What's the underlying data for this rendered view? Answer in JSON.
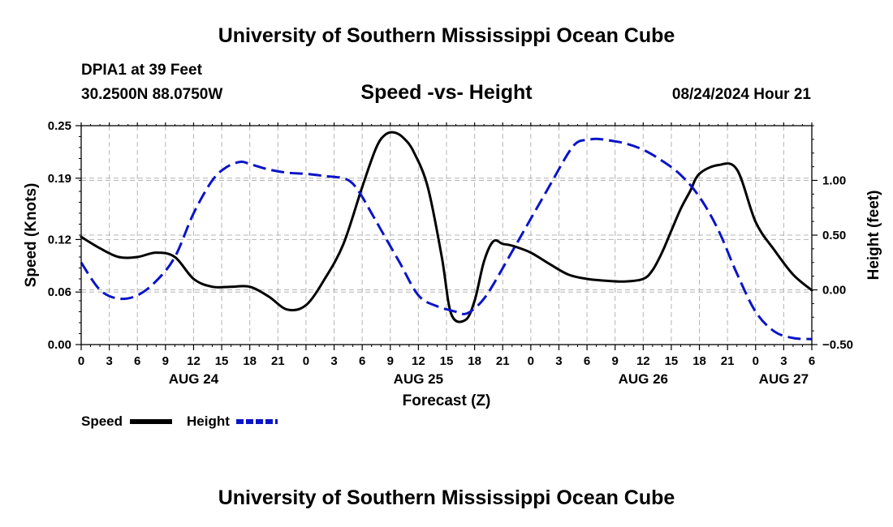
{
  "header": {
    "title": "University of Southern Mississippi Ocean Cube",
    "station": "DPIA1 at 39 Feet",
    "coords": "30.2500N  88.0750W",
    "subtitle": "Speed -vs- Height",
    "datetime": "08/24/2024 Hour 21"
  },
  "footer": {
    "title": "University of Southern Mississippi Ocean Cube"
  },
  "legend": {
    "speed_label": "Speed",
    "height_label": "Height"
  },
  "colors": {
    "speed": "#000000",
    "height": "#0a14c8",
    "grid": "#b4b4b4"
  },
  "chart_data": {
    "type": "line",
    "title": "Speed -vs- Height",
    "xlabel": "Forecast (Z)",
    "ylabel": "Speed (Knots)",
    "y2label": "Height (feet)",
    "x_unit": "hours since 00Z Aug 24",
    "xlim": [
      0,
      78
    ],
    "ylim": [
      0,
      0.25
    ],
    "y2lim": [
      -0.5,
      1.5
    ],
    "x_ticks": [
      0,
      3,
      6,
      9,
      12,
      15,
      18,
      21,
      24,
      27,
      30,
      33,
      36,
      39,
      42,
      45,
      48,
      51,
      54,
      57,
      60,
      63,
      66,
      69,
      72,
      75,
      78
    ],
    "x_tick_labels": [
      "0",
      "3",
      "6",
      "9",
      "12",
      "15",
      "18",
      "21",
      "0",
      "3",
      "6",
      "9",
      "12",
      "15",
      "18",
      "21",
      "0",
      "3",
      "6",
      "9",
      "12",
      "15",
      "18",
      "21",
      "0",
      "3",
      "6"
    ],
    "date_labels": [
      {
        "x": 12,
        "label": "AUG 24"
      },
      {
        "x": 36,
        "label": "AUG 25"
      },
      {
        "x": 60,
        "label": "AUG 26"
      },
      {
        "x": 75,
        "label": "AUG 27"
      }
    ],
    "y_ticks": [
      0.0,
      0.06,
      0.12,
      0.19,
      0.25
    ],
    "y_tick_labels": [
      "0.00",
      "0.06",
      "0.12",
      "0.19",
      "0.25"
    ],
    "y2_ticks": [
      -0.5,
      0.0,
      0.5,
      1.0
    ],
    "y2_tick_labels": [
      "−0.50",
      "0.00",
      "0.50",
      "1.00"
    ],
    "series": [
      {
        "name": "Speed",
        "axis": "left",
        "style": "solid",
        "x": [
          0,
          2,
          4,
          6,
          8,
          10,
          12,
          14,
          16,
          18,
          20,
          22,
          24,
          26,
          28,
          30,
          31.5,
          32.5,
          33.5,
          34.5,
          35.5,
          37,
          38.5,
          39.5,
          41,
          42,
          43,
          44,
          45,
          46,
          48,
          50,
          52,
          54,
          56,
          58,
          60,
          61,
          62,
          63,
          64,
          65,
          66,
          68,
          70,
          72,
          74,
          76,
          78
        ],
        "values": [
          0.123,
          0.11,
          0.1,
          0.1,
          0.105,
          0.1,
          0.075,
          0.066,
          0.066,
          0.066,
          0.055,
          0.04,
          0.045,
          0.075,
          0.115,
          0.18,
          0.225,
          0.24,
          0.242,
          0.235,
          0.22,
          0.18,
          0.1,
          0.035,
          0.028,
          0.05,
          0.095,
          0.118,
          0.115,
          0.113,
          0.105,
          0.092,
          0.08,
          0.075,
          0.073,
          0.072,
          0.075,
          0.085,
          0.105,
          0.13,
          0.155,
          0.175,
          0.195,
          0.205,
          0.2,
          0.14,
          0.108,
          0.08,
          0.062
        ]
      },
      {
        "name": "Height",
        "axis": "right",
        "style": "dashed",
        "x": [
          0,
          2,
          4,
          6,
          8,
          10,
          12,
          14,
          15.5,
          17,
          18,
          20,
          22,
          24,
          26,
          28,
          29,
          30,
          31,
          32,
          34,
          36,
          38,
          40,
          41,
          42,
          43,
          44,
          46,
          48,
          50,
          52,
          53,
          54,
          55,
          56,
          58,
          60,
          62,
          64,
          66,
          68,
          70,
          72,
          74,
          76,
          78
        ],
        "values": [
          0.25,
          0.0,
          -0.08,
          -0.05,
          0.08,
          0.3,
          0.7,
          1.0,
          1.12,
          1.17,
          1.15,
          1.1,
          1.07,
          1.06,
          1.04,
          1.02,
          0.97,
          0.85,
          0.7,
          0.55,
          0.25,
          -0.05,
          -0.15,
          -0.2,
          -0.22,
          -0.17,
          -0.08,
          0.05,
          0.35,
          0.65,
          0.95,
          1.25,
          1.35,
          1.37,
          1.38,
          1.37,
          1.34,
          1.28,
          1.18,
          1.05,
          0.85,
          0.55,
          0.15,
          -0.2,
          -0.38,
          -0.44,
          -0.45
        ]
      }
    ]
  }
}
